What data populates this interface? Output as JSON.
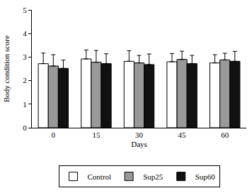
{
  "chart_data": {
    "type": "bar",
    "categories": [
      "0",
      "15",
      "30",
      "45",
      "60"
    ],
    "x_label": "Days",
    "y_label": "Body condition score",
    "series": [
      {
        "name": "Control",
        "color": "#ffffff",
        "values": [
          2.72,
          2.92,
          2.82,
          2.8,
          2.75
        ],
        "errors": [
          0.45,
          0.38,
          0.45,
          0.35,
          0.35
        ]
      },
      {
        "name": "Sup25",
        "color": "#999999",
        "values": [
          2.62,
          2.78,
          2.75,
          2.9,
          2.88
        ],
        "errors": [
          0.48,
          0.5,
          0.32,
          0.35,
          0.28
        ]
      },
      {
        "name": "Sup60",
        "color": "#111111",
        "values": [
          2.52,
          2.72,
          2.68,
          2.72,
          2.82
        ],
        "errors": [
          0.35,
          0.42,
          0.45,
          0.35,
          0.42
        ]
      }
    ],
    "ylim": [
      0,
      5
    ],
    "yticks": [
      0,
      1,
      2,
      3,
      4,
      5
    ],
    "grid": false,
    "legend": "bottom"
  }
}
